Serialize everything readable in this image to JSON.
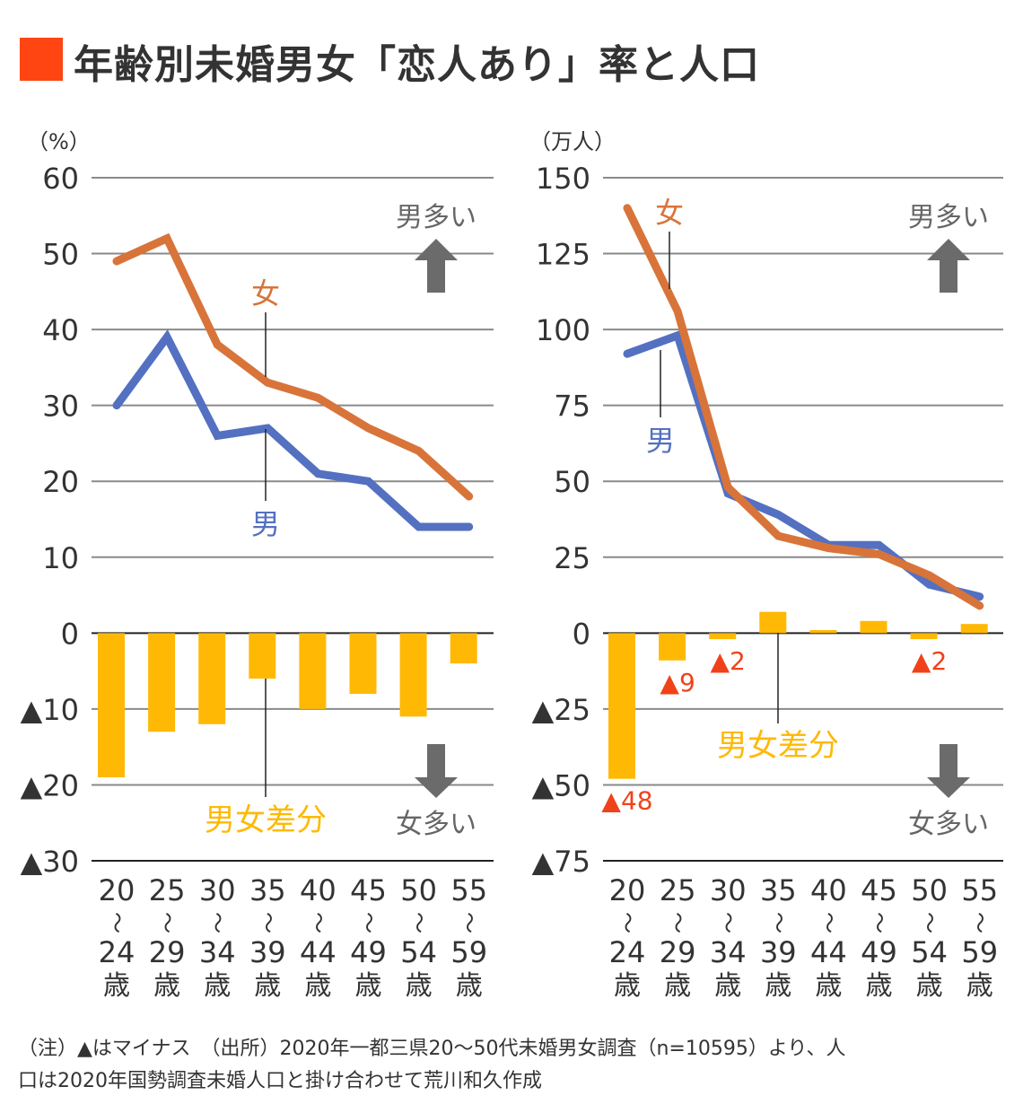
{
  "header": {
    "title": "年齢別未婚男女「恋人あり」率と人口",
    "accent_color": "#FF4612"
  },
  "colors": {
    "male": "#5470C1",
    "female": "#D8743A",
    "diff": "#FFB905",
    "arrow": "#6B6B6B",
    "neg_label": "#F0421A",
    "grid": "#8A8A8A",
    "text": "#333333"
  },
  "chart_data": [
    {
      "type": "line+bar",
      "title": "恋人あり率",
      "unit_label": "（%）",
      "categories": [
        {
          "top": "20",
          "sep": "∫",
          "bottom": "24",
          "suffix": "歳"
        },
        {
          "top": "25",
          "sep": "∫",
          "bottom": "29",
          "suffix": "歳"
        },
        {
          "top": "30",
          "sep": "∫",
          "bottom": "34",
          "suffix": "歳"
        },
        {
          "top": "35",
          "sep": "∫",
          "bottom": "39",
          "suffix": "歳"
        },
        {
          "top": "40",
          "sep": "∫",
          "bottom": "44",
          "suffix": "歳"
        },
        {
          "top": "45",
          "sep": "∫",
          "bottom": "49",
          "suffix": "歳"
        },
        {
          "top": "50",
          "sep": "∫",
          "bottom": "54",
          "suffix": "歳"
        },
        {
          "top": "55",
          "sep": "∫",
          "bottom": "59",
          "suffix": "歳"
        }
      ],
      "ylim": [
        -30,
        60
      ],
      "yticks": [
        60,
        50,
        40,
        30,
        20,
        10,
        0,
        -10,
        -20,
        -30
      ],
      "ytick_labels": [
        "60",
        "50",
        "40",
        "30",
        "20",
        "10",
        "0",
        "▲10",
        "▲20",
        "▲30"
      ],
      "grid": true,
      "series": [
        {
          "name": "女",
          "kind": "line",
          "values": [
            49,
            52,
            38,
            33,
            31,
            27,
            24,
            18
          ]
        },
        {
          "name": "男",
          "kind": "line",
          "values": [
            30,
            39,
            26,
            27,
            21,
            20,
            14,
            14
          ]
        },
        {
          "name": "男女差分",
          "kind": "bar",
          "values": [
            -19,
            -13,
            -12,
            -6,
            -10,
            -8,
            -11,
            -4
          ]
        }
      ],
      "annotations": {
        "female_label": "女",
        "male_label": "男",
        "diff_label": "男女差分",
        "up_text": "男多い",
        "down_text": "女多い",
        "value_labels": []
      }
    },
    {
      "type": "line+bar",
      "title": "人口",
      "unit_label": "（万人）",
      "categories": [
        {
          "top": "20",
          "sep": "∫",
          "bottom": "24",
          "suffix": "歳"
        },
        {
          "top": "25",
          "sep": "∫",
          "bottom": "29",
          "suffix": "歳"
        },
        {
          "top": "30",
          "sep": "∫",
          "bottom": "34",
          "suffix": "歳"
        },
        {
          "top": "35",
          "sep": "∫",
          "bottom": "39",
          "suffix": "歳"
        },
        {
          "top": "40",
          "sep": "∫",
          "bottom": "44",
          "suffix": "歳"
        },
        {
          "top": "45",
          "sep": "∫",
          "bottom": "49",
          "suffix": "歳"
        },
        {
          "top": "50",
          "sep": "∫",
          "bottom": "54",
          "suffix": "歳"
        },
        {
          "top": "55",
          "sep": "∫",
          "bottom": "59",
          "suffix": "歳"
        }
      ],
      "ylim": [
        -75,
        150
      ],
      "yticks": [
        150,
        125,
        100,
        75,
        50,
        25,
        0,
        -25,
        -50,
        -75
      ],
      "ytick_labels": [
        "150",
        "125",
        "100",
        "75",
        "50",
        "25",
        "0",
        "▲25",
        "▲50",
        "▲75"
      ],
      "grid": true,
      "series": [
        {
          "name": "女",
          "kind": "line",
          "values": [
            140,
            106,
            48,
            32,
            28,
            26,
            19,
            9
          ]
        },
        {
          "name": "男",
          "kind": "line",
          "values": [
            92,
            98,
            46,
            39,
            29,
            29,
            16,
            12
          ]
        },
        {
          "name": "男女差分",
          "kind": "bar",
          "values": [
            -48,
            -9,
            -2,
            7,
            1,
            4,
            -2,
            3
          ]
        }
      ],
      "annotations": {
        "female_label": "女",
        "male_label": "男",
        "diff_label": "男女差分",
        "up_text": "男多い",
        "down_text": "女多い",
        "value_labels": [
          {
            "index": 0,
            "text": "▲48"
          },
          {
            "index": 1,
            "text": "▲9"
          },
          {
            "index": 2,
            "text": "▲2"
          },
          {
            "index": 6,
            "text": "▲2"
          }
        ]
      }
    }
  ],
  "footer": {
    "line1": "（注）▲はマイナス　（出所）2020年一都三県20〜50代未婚男女調査（n=10595）より、人",
    "line2": "口は2020年国勢調査未婚人口と掛け合わせて荒川和久作成"
  }
}
